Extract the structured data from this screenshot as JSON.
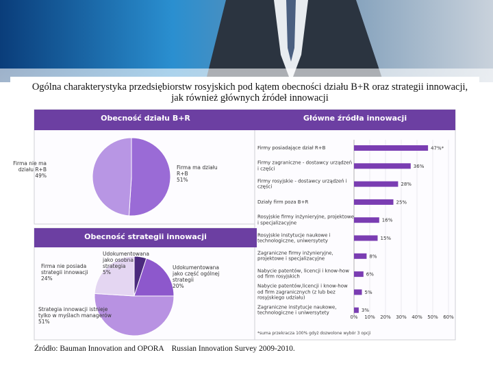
{
  "title": "Ogólna charakterystyka przedsiębiorstw rosyjskich pod kątem obecności działu B+R oraz strategii innowacji, jak również głównych źródeł innowacji",
  "source": "Źródło: Bauman Innovation and OPORA    Russian Innovation Survey 2009-2010.",
  "chart_data": [
    {
      "type": "pie",
      "title": "Obecność działu B+R",
      "categories": [
        "Firma ma działu R+B",
        "Firma nie ma działu R+B"
      ],
      "values": [
        51,
        49
      ],
      "value_labels": [
        "51%",
        "49%"
      ],
      "colors": [
        "#9a6bd6",
        "#b896e4"
      ]
    },
    {
      "type": "pie",
      "title": "Obecność strategii innowacji",
      "categories": [
        "Udokumentowana jako osobna strategia",
        "Udokumentowana jako część ogólnej strategii",
        "Strategia innowacji istnieje tylko w myślach managerów",
        "Firma nie posiada strategii innowacji"
      ],
      "values": [
        5,
        20,
        51,
        24
      ],
      "value_labels": [
        "5%",
        "20%",
        "51%",
        "24%"
      ],
      "colors": [
        "#4b2a7e",
        "#8d58cc",
        "#b892e2",
        "#e4d6f2"
      ]
    },
    {
      "type": "barh",
      "title": "Główne źródła innowacji",
      "categories": [
        "Firmy posiadające dział R+B",
        "Firmy zagraniczne - dostawcy urządzeń i części",
        "Firmy rosyjskie - dostawcy urządzeń i części",
        "Działy firm poza B+R",
        "Rosyjskie firmy inżynieryjne, projektowe i specjalizacyjne",
        "Rosyjskie instytucje naukowe i technologiczne, uniwersytety",
        "Zagraniczne firmy inżynieryjne, projektowe i specjalizacyjne",
        "Nabycie patentów, licencji i know-how od firm rosyjskich",
        "Nabycie patentów,licencji i know-how od firm zagranicznych (z lub bez rosyjskiego udziału)",
        "Zagraniczne instytucje naukowe, technologiczne i uniwersytety"
      ],
      "values": [
        47,
        36,
        28,
        25,
        16,
        15,
        8,
        6,
        5,
        3
      ],
      "value_labels": [
        "47%*",
        "36%",
        "28%",
        "25%",
        "16%",
        "15%",
        "8%",
        "6%",
        "5%",
        "3%"
      ],
      "color": "#7a3db2",
      "xlim": [
        0,
        60
      ],
      "xticks": [
        {
          "value": 0,
          "label": "0%"
        },
        {
          "value": 10,
          "label": "10%"
        },
        {
          "value": 20,
          "label": "20%"
        },
        {
          "value": 30,
          "label": "30%"
        },
        {
          "value": 40,
          "label": "40%"
        },
        {
          "value": 50,
          "label": "50%"
        },
        {
          "value": 60,
          "label": "60%"
        }
      ],
      "grid": true,
      "footnote": "*suma przekracza 100% gdyż dozwolone wybór 3 opcji"
    }
  ]
}
